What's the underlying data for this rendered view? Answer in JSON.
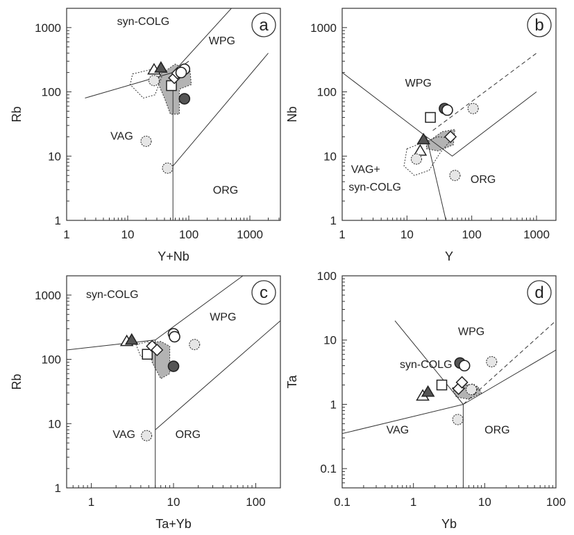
{
  "figure": {
    "panels": [
      {
        "id": "a",
        "letter": "a",
        "x_label": "Y+Nb",
        "y_label": "Rb",
        "x_log_range": [
          0,
          3.5
        ],
        "y_log_range": [
          0,
          3.3
        ],
        "x_tick_labels": [
          "1",
          "10",
          "100",
          "1000"
        ],
        "y_tick_labels": [
          "1",
          "10",
          "100",
          "1000"
        ],
        "field_labels": [
          "syn-COLG",
          "WPG",
          "VAG",
          "ORG"
        ]
      },
      {
        "id": "b",
        "letter": "b",
        "x_label": "Y",
        "y_label": "Nb",
        "x_log_range": [
          0,
          3.3
        ],
        "y_log_range": [
          0,
          3.3
        ],
        "x_tick_labels": [
          "1",
          "10",
          "100",
          "1000"
        ],
        "y_tick_labels": [
          "1",
          "10",
          "100",
          "1000"
        ],
        "field_labels": [
          "WPG",
          "VAG+",
          "syn-COLG",
          "ORG"
        ]
      },
      {
        "id": "c",
        "letter": "c",
        "x_label": "Ta+Yb",
        "y_label": "Rb",
        "x_log_range": [
          -0.3,
          2.3
        ],
        "y_log_range": [
          0,
          3.3
        ],
        "x_tick_labels": [
          "1",
          "10",
          "100"
        ],
        "y_tick_labels": [
          "1",
          "10",
          "100",
          "1000"
        ],
        "field_labels": [
          "syn-COLG",
          "WPG",
          "VAG",
          "ORG"
        ]
      },
      {
        "id": "d",
        "letter": "d",
        "x_label": "Yb",
        "y_label": "Ta",
        "x_log_range": [
          -1,
          2
        ],
        "y_log_range": [
          -1.3,
          2
        ],
        "x_tick_labels": [
          "0.1",
          "1",
          "10",
          "100"
        ],
        "y_tick_labels": [
          "0.1",
          "1",
          "10",
          "100"
        ],
        "field_labels": [
          "WPG",
          "syn-COLG",
          "VAG",
          "ORG"
        ]
      }
    ]
  },
  "chart_data": [
    {
      "type": "scatter",
      "panel": "a",
      "xlabel": "Y+Nb",
      "ylabel": "Rb",
      "x_scale": "log",
      "y_scale": "log",
      "xlim": [
        1,
        3162
      ],
      "ylim": [
        1,
        1995
      ],
      "boundaries": [
        {
          "style": "solid",
          "points": [
            [
              2,
              80
            ],
            [
              55,
              200
            ],
            [
              55,
              1
            ],
            [
              55,
              200
            ],
            [
              500,
              2000
            ]
          ]
        },
        {
          "style": "solid",
          "points": [
            [
              55,
              7
            ],
            [
              2000,
              400
            ]
          ]
        },
        {
          "style": "solid",
          "points": [
            [
              55,
              200
            ],
            [
              100,
              300
            ]
          ]
        }
      ],
      "fields": [
        {
          "label": "syn-COLG",
          "x": 18,
          "y": 1100
        },
        {
          "label": "WPG",
          "x": 350,
          "y": 550
        },
        {
          "label": "VAG",
          "x": 8,
          "y": 18
        },
        {
          "label": "ORG",
          "x": 400,
          "y": 2.6
        }
      ],
      "regions": [
        {
          "fill": "#ababab",
          "border": "dotted",
          "points": [
            [
              35,
              190
            ],
            [
              60,
              270
            ],
            [
              105,
              210
            ],
            [
              110,
              130
            ],
            [
              70,
              110
            ],
            [
              70,
              45
            ],
            [
              50,
              45
            ],
            [
              40,
              80
            ],
            [
              30,
              150
            ]
          ]
        },
        {
          "fill": "#ffffff",
          "border": "dotted",
          "points": [
            [
              12,
              190
            ],
            [
              28,
              230
            ],
            [
              36,
              170
            ],
            [
              28,
              90
            ],
            [
              18,
              80
            ],
            [
              11,
              130
            ]
          ]
        }
      ],
      "points": [
        {
          "symbol": "triangle-open",
          "x": 27,
          "y": 220
        },
        {
          "symbol": "triangle-filled",
          "x": 35,
          "y": 235
        },
        {
          "symbol": "square-open",
          "x": 52,
          "y": 125
        },
        {
          "symbol": "diamond-open",
          "x": 58,
          "y": 165
        },
        {
          "symbol": "diamond-open",
          "x": 65,
          "y": 195
        },
        {
          "symbol": "circle-open",
          "x": 85,
          "y": 225
        },
        {
          "symbol": "circle-open",
          "x": 75,
          "y": 200
        },
        {
          "symbol": "circle-filled",
          "x": 85,
          "y": 78
        },
        {
          "symbol": "circle-dotted",
          "x": 27,
          "y": 150
        },
        {
          "symbol": "circle-dotted",
          "x": 20,
          "y": 17
        },
        {
          "symbol": "circle-dotted",
          "x": 45,
          "y": 6.5
        }
      ]
    },
    {
      "type": "scatter",
      "panel": "b",
      "xlabel": "Y",
      "ylabel": "Nb",
      "x_scale": "log",
      "y_scale": "log",
      "xlim": [
        1,
        1995
      ],
      "ylim": [
        1,
        1995
      ],
      "boundaries": [
        {
          "style": "solid",
          "points": [
            [
              1,
              200
            ],
            [
              20,
              20
            ],
            [
              40,
              1
            ]
          ]
        },
        {
          "style": "solid",
          "points": [
            [
              20,
              20
            ],
            [
              50,
              10
            ],
            [
              1000,
              100
            ]
          ]
        },
        {
          "style": "dashed",
          "points": [
            [
              25,
              25
            ],
            [
              1000,
              400
            ]
          ]
        }
      ],
      "fields": [
        {
          "label": "WPG",
          "x": 15,
          "y": 120
        },
        {
          "label": "VAG+",
          "x": 2.3,
          "y": 5.5
        },
        {
          "label": "syn-COLG",
          "x": 3.2,
          "y": 2.9
        },
        {
          "label": "ORG",
          "x": 150,
          "y": 3.8
        }
      ],
      "regions": [
        {
          "fill": "#ababab",
          "border": "dotted",
          "points": [
            [
              20,
              16
            ],
            [
              35,
              24
            ],
            [
              55,
              26
            ],
            [
              52,
              15
            ],
            [
              30,
              12
            ],
            [
              20,
              13
            ]
          ]
        },
        {
          "fill": "#ffffff",
          "border": "dotted",
          "points": [
            [
              10,
              13
            ],
            [
              30,
              20
            ],
            [
              50,
              19
            ],
            [
              32,
              11
            ],
            [
              22,
              6
            ],
            [
              13,
              5
            ],
            [
              9,
              7
            ]
          ]
        }
      ],
      "points": [
        {
          "symbol": "triangle-open",
          "x": 16,
          "y": 12
        },
        {
          "symbol": "triangle-filled",
          "x": 18,
          "y": 18
        },
        {
          "symbol": "square-open",
          "x": 23,
          "y": 40
        },
        {
          "symbol": "circle-filled",
          "x": 38,
          "y": 55
        },
        {
          "symbol": "circle-open",
          "x": 42,
          "y": 52
        },
        {
          "symbol": "diamond-open",
          "x": 47,
          "y": 20
        },
        {
          "symbol": "circle-dotted",
          "x": 105,
          "y": 55
        },
        {
          "symbol": "circle-dotted",
          "x": 14,
          "y": 9
        },
        {
          "symbol": "circle-dotted",
          "x": 55,
          "y": 5
        }
      ]
    },
    {
      "type": "scatter",
      "panel": "c",
      "xlabel": "Ta+Yb",
      "ylabel": "Rb",
      "x_scale": "log",
      "y_scale": "log",
      "xlim": [
        0.5,
        200
      ],
      "ylim": [
        1,
        1995
      ],
      "boundaries": [
        {
          "style": "solid",
          "points": [
            [
              0.5,
              140
            ],
            [
              6,
              200
            ],
            [
              6,
              1
            ],
            [
              6,
              200
            ],
            [
              70,
              2000
            ]
          ]
        },
        {
          "style": "solid",
          "points": [
            [
              6,
              8
            ],
            [
              200,
              400
            ]
          ]
        }
      ],
      "fields": [
        {
          "label": "syn-COLG",
          "x": 1.8,
          "y": 900
        },
        {
          "label": "WPG",
          "x": 40,
          "y": 400
        },
        {
          "label": "VAG",
          "x": 2.5,
          "y": 6
        },
        {
          "label": "ORG",
          "x": 15,
          "y": 6
        }
      ],
      "regions": [
        {
          "fill": "#ababab",
          "border": "dotted",
          "points": [
            [
              5,
              180
            ],
            [
              7,
              190
            ],
            [
              9,
              160
            ],
            [
              9,
              60
            ],
            [
              7,
              50
            ],
            [
              5.5,
              90
            ]
          ]
        },
        {
          "fill": "#ffffff",
          "border": "dotted",
          "points": [
            [
              3.5,
              170
            ],
            [
              5,
              190
            ],
            [
              5.5,
              120
            ],
            [
              4,
              110
            ]
          ]
        }
      ],
      "points": [
        {
          "symbol": "triangle-open",
          "x": 2.7,
          "y": 190
        },
        {
          "symbol": "triangle-filled",
          "x": 3.1,
          "y": 200
        },
        {
          "symbol": "square-open",
          "x": 4.8,
          "y": 120
        },
        {
          "symbol": "diamond-open",
          "x": 5.5,
          "y": 160
        },
        {
          "symbol": "diamond-open",
          "x": 6.3,
          "y": 140
        },
        {
          "symbol": "circle-open",
          "x": 10,
          "y": 250
        },
        {
          "symbol": "circle-open",
          "x": 10.3,
          "y": 225
        },
        {
          "symbol": "circle-filled",
          "x": 10,
          "y": 78
        },
        {
          "symbol": "circle-dotted",
          "x": 18,
          "y": 170
        },
        {
          "symbol": "circle-dotted",
          "x": 4.7,
          "y": 6.5
        }
      ]
    },
    {
      "type": "scatter",
      "panel": "d",
      "xlabel": "Yb",
      "ylabel": "Ta",
      "x_scale": "log",
      "y_scale": "log",
      "xlim": [
        0.1,
        100
      ],
      "ylim": [
        0.05,
        100
      ],
      "boundaries": [
        {
          "style": "solid",
          "points": [
            [
              0.1,
              0.35
            ],
            [
              5,
              1
            ],
            [
              5,
              0.05
            ],
            [
              5,
              1
            ],
            [
              100,
              7
            ]
          ]
        },
        {
          "style": "solid",
          "points": [
            [
              0.55,
              20
            ],
            [
              5,
              1
            ]
          ]
        },
        {
          "style": "dashed",
          "points": [
            [
              5,
              1
            ],
            [
              100,
              20
            ]
          ]
        }
      ],
      "fields": [
        {
          "label": "WPG",
          "x": 6.5,
          "y": 12
        },
        {
          "label": "syn-COLG",
          "x": 1.5,
          "y": 3.7
        },
        {
          "label": "VAG",
          "x": 0.6,
          "y": 0.35
        },
        {
          "label": "ORG",
          "x": 15,
          "y": 0.35
        }
      ],
      "regions": [
        {
          "fill": "#ababab",
          "border": "dotted",
          "points": [
            [
              3.5,
              1.8
            ],
            [
              5,
              2.1
            ],
            [
              8,
              1.9
            ],
            [
              9,
              1.5
            ],
            [
              6,
              1.2
            ],
            [
              4,
              1.3
            ]
          ]
        },
        {
          "fill": "#ffffff",
          "border": "dotted",
          "points": [
            [
              5,
              1.9
            ],
            [
              7,
              2.1
            ],
            [
              8,
              1.7
            ],
            [
              6,
              1.5
            ]
          ]
        }
      ],
      "points": [
        {
          "symbol": "triangle-open",
          "x": 1.35,
          "y": 1.35
        },
        {
          "symbol": "triangle-filled",
          "x": 1.6,
          "y": 1.55
        },
        {
          "symbol": "square-open",
          "x": 2.5,
          "y": 2
        },
        {
          "symbol": "diamond-open",
          "x": 4.3,
          "y": 1.75
        },
        {
          "symbol": "diamond-open",
          "x": 4.8,
          "y": 2.2
        },
        {
          "symbol": "circle-filled",
          "x": 4.5,
          "y": 4.4
        },
        {
          "symbol": "circle-open",
          "x": 5.2,
          "y": 4
        },
        {
          "symbol": "circle-dotted",
          "x": 12.5,
          "y": 4.6
        },
        {
          "symbol": "circle-dotted",
          "x": 6.5,
          "y": 1.7
        },
        {
          "symbol": "circle-dotted",
          "x": 4.2,
          "y": 0.58
        }
      ]
    }
  ]
}
